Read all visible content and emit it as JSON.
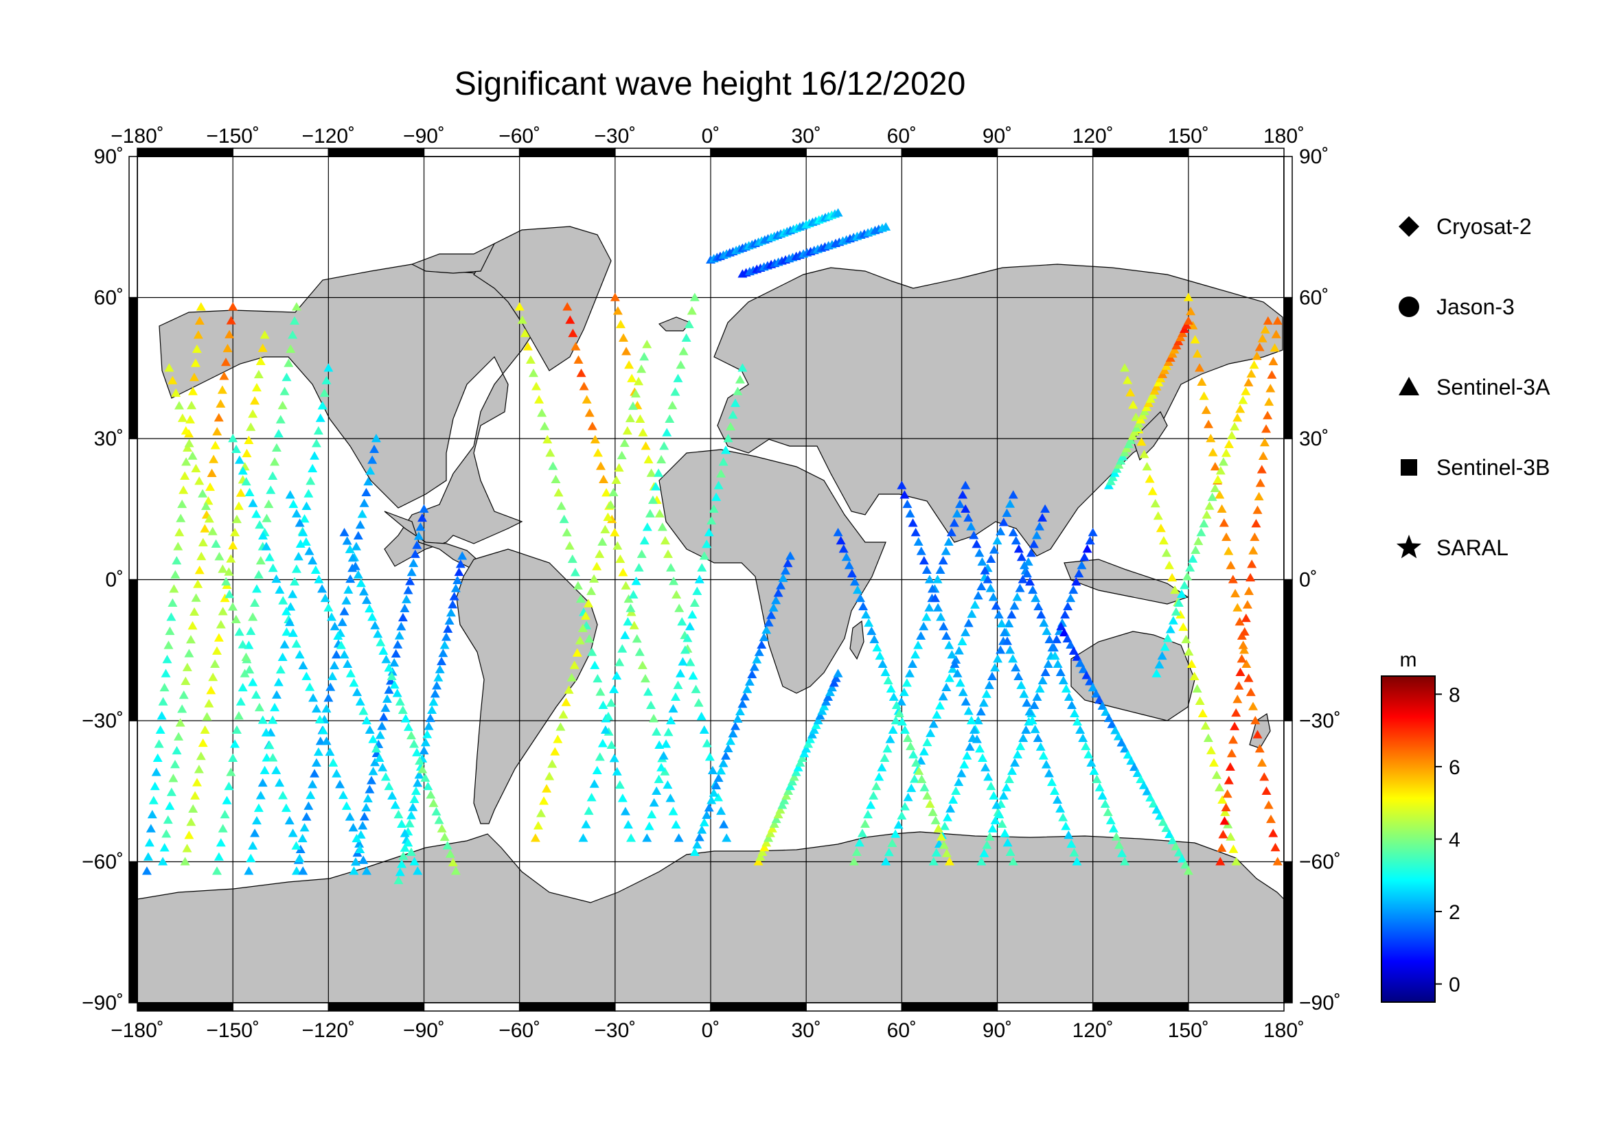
{
  "title": "Significant wave height 16/12/2020",
  "map": {
    "projection": "equirectangular",
    "lon_range": [
      -180,
      180
    ],
    "lat_range": [
      -90,
      90
    ],
    "lon_ticks": [
      -180,
      -150,
      -120,
      -90,
      -60,
      -30,
      0,
      30,
      60,
      90,
      120,
      150,
      180
    ],
    "lat_ticks": [
      -90,
      -60,
      -30,
      0,
      30,
      60,
      90
    ],
    "lon_tick_labels": [
      "−180˚",
      "−150˚",
      "−120˚",
      "−90˚",
      "−60˚",
      "−30˚",
      "0˚",
      "30˚",
      "60˚",
      "90˚",
      "120˚",
      "150˚",
      "180˚"
    ],
    "lat_tick_labels": [
      "−90˚",
      "−60˚",
      "−30˚",
      "0˚",
      "30˚",
      "60˚",
      "90˚"
    ],
    "grid": true,
    "land_color": "#c0c0c0",
    "ocean_color": "#ffffff",
    "frame_color": "#000000"
  },
  "legend": {
    "placement": "right",
    "items": [
      {
        "label": "Cryosat-2",
        "symbol": "diamond"
      },
      {
        "label": "Jason-3",
        "symbol": "circle"
      },
      {
        "label": "Sentinel-3A",
        "symbol": "triangle"
      },
      {
        "label": "Sentinel-3B",
        "symbol": "square"
      },
      {
        "label": "SARAL",
        "symbol": "star"
      }
    ]
  },
  "colorbar": {
    "label": "m",
    "range": [
      -0.5,
      8.5
    ],
    "ticks": [
      0,
      2,
      4,
      6,
      8
    ],
    "tick_labels": [
      "0",
      "2",
      "4",
      "6",
      "8"
    ],
    "colormap": "jet"
  },
  "chart_data": {
    "type": "scatter",
    "title": "Significant wave height 16/12/2020",
    "xlabel": "",
    "ylabel": "",
    "xlim": [
      -180,
      180
    ],
    "ylim": [
      -90,
      90
    ],
    "value_unit": "m",
    "value_range": [
      -0.5,
      8.5
    ],
    "series_names": [
      "Cryosat-2",
      "Jason-3",
      "Sentinel-3A",
      "Sentinel-3B",
      "SARAL"
    ],
    "tracks": [
      {
        "lon": [
          -177,
          -160
        ],
        "lat": [
          -62,
          58
        ],
        "v0": 2.2,
        "v1": 5.6
      },
      {
        "lon": [
          -172,
          -150
        ],
        "lat": [
          -60,
          58
        ],
        "v0": 3.0,
        "v1": 6.5
      },
      {
        "lon": [
          -165,
          -140
        ],
        "lat": [
          -60,
          52
        ],
        "v0": 4.6,
        "v1": 5.0
      },
      {
        "lon": [
          -155,
          -130
        ],
        "lat": [
          -62,
          58
        ],
        "v0": 3.2,
        "v1": 3.8
      },
      {
        "lon": [
          -145,
          -120
        ],
        "lat": [
          -62,
          45
        ],
        "v0": 2.4,
        "v1": 3.2
      },
      {
        "lon": [
          -130,
          -105
        ],
        "lat": [
          -62,
          30
        ],
        "v0": 2.2,
        "v1": 2.0
      },
      {
        "lon": [
          -112,
          -90
        ],
        "lat": [
          -62,
          15
        ],
        "v0": 2.2,
        "v1": 1.6
      },
      {
        "lon": [
          -98,
          -78
        ],
        "lat": [
          -64,
          5
        ],
        "v0": 3.2,
        "v1": 1.4
      },
      {
        "lon": [
          -170,
          -128
        ],
        "lat": [
          45,
          -62
        ],
        "v0": 5.0,
        "v1": 2.4
      },
      {
        "lon": [
          -150,
          -108
        ],
        "lat": [
          30,
          -62
        ],
        "v0": 3.0,
        "v1": 2.4
      },
      {
        "lon": [
          -132,
          -92
        ],
        "lat": [
          18,
          -62
        ],
        "v0": 2.4,
        "v1": 3.0
      },
      {
        "lon": [
          -115,
          -80
        ],
        "lat": [
          10,
          -62
        ],
        "v0": 2.0,
        "v1": 4.2
      },
      {
        "lon": [
          -60,
          -25
        ],
        "lat": [
          58,
          -55
        ],
        "v0": 5.0,
        "v1": 2.6
      },
      {
        "lon": [
          -45,
          -10
        ],
        "lat": [
          58,
          -55
        ],
        "v0": 7.0,
        "v1": 2.4
      },
      {
        "lon": [
          -30,
          5
        ],
        "lat": [
          60,
          -55
        ],
        "v0": 6.0,
        "v1": 2.2
      },
      {
        "lon": [
          -55,
          -20
        ],
        "lat": [
          -55,
          50
        ],
        "v0": 5.0,
        "v1": 4.2
      },
      {
        "lon": [
          -40,
          -5
        ],
        "lat": [
          -55,
          60
        ],
        "v0": 2.8,
        "v1": 3.8
      },
      {
        "lon": [
          -20,
          10
        ],
        "lat": [
          -55,
          45
        ],
        "v0": 2.6,
        "v1": 3.6
      },
      {
        "lon": [
          -5,
          25
        ],
        "lat": [
          -58,
          5
        ],
        "v0": 2.4,
        "v1": 1.6
      },
      {
        "lon": [
          15,
          40
        ],
        "lat": [
          -60,
          -20
        ],
        "v0": 5.0,
        "v1": 1.6
      },
      {
        "lon": [
          45,
          80
        ],
        "lat": [
          -60,
          20
        ],
        "v0": 3.6,
        "v1": 1.4
      },
      {
        "lon": [
          55,
          95
        ],
        "lat": [
          -60,
          18
        ],
        "v0": 3.2,
        "v1": 1.6
      },
      {
        "lon": [
          70,
          105
        ],
        "lat": [
          -60,
          15
        ],
        "v0": 3.0,
        "v1": 1.4
      },
      {
        "lon": [
          85,
          120
        ],
        "lat": [
          -60,
          10
        ],
        "v0": 3.4,
        "v1": 1.0
      },
      {
        "lon": [
          40,
          75
        ],
        "lat": [
          10,
          -60
        ],
        "v0": 1.2,
        "v1": 4.8
      },
      {
        "lon": [
          60,
          95
        ],
        "lat": [
          20,
          -60
        ],
        "v0": 1.2,
        "v1": 3.2
      },
      {
        "lon": [
          80,
          115
        ],
        "lat": [
          15,
          -60
        ],
        "v0": 1.4,
        "v1": 3.0
      },
      {
        "lon": [
          95,
          130
        ],
        "lat": [
          10,
          -60
        ],
        "v0": 1.2,
        "v1": 3.6
      },
      {
        "lon": [
          110,
          150
        ],
        "lat": [
          -10,
          -62
        ],
        "v0": 1.0,
        "v1": 3.6
      },
      {
        "lon": [
          150,
          178
        ],
        "lat": [
          60,
          -60
        ],
        "v0": 5.6,
        "v1": 6.8
      },
      {
        "lon": [
          130,
          165
        ],
        "lat": [
          45,
          -60
        ],
        "v0": 5.0,
        "v1": 4.6
      },
      {
        "lon": [
          160,
          178
        ],
        "lat": [
          -60,
          55
        ],
        "v0": 7.0,
        "v1": 6.0
      },
      {
        "lon": [
          140,
          175
        ],
        "lat": [
          -20,
          55
        ],
        "v0": 2.4,
        "v1": 6.2
      },
      {
        "lon": [
          125,
          150
        ],
        "lat": [
          20,
          55
        ],
        "v0": 3.0,
        "v1": 7.0
      },
      {
        "lon": [
          0,
          40
        ],
        "lat": [
          68,
          78
        ],
        "v0": 1.6,
        "v1": 2.6
      },
      {
        "lon": [
          10,
          55
        ],
        "lat": [
          65,
          75
        ],
        "v0": 1.2,
        "v1": 2.0
      }
    ]
  }
}
